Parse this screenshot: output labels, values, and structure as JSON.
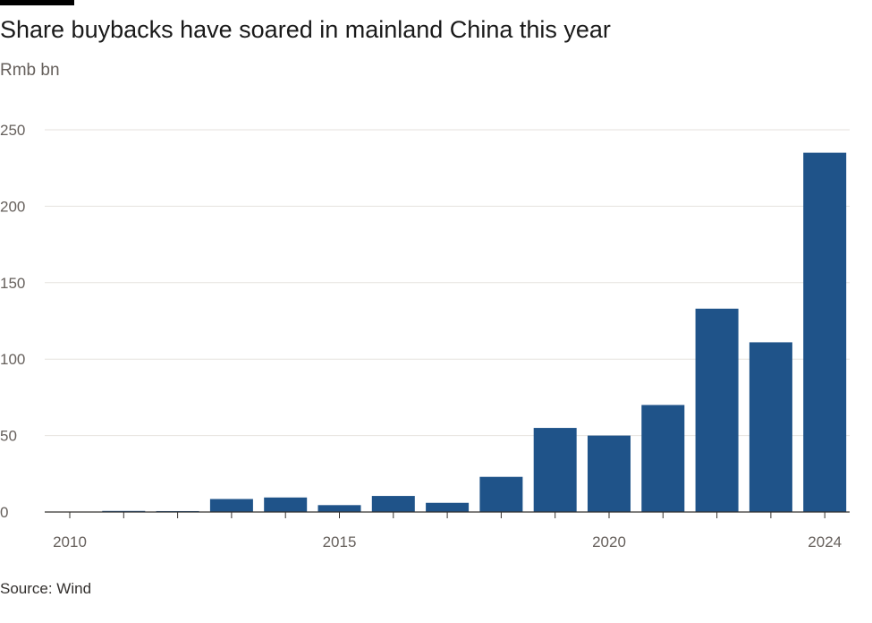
{
  "title": "Share buybacks have soared in mainland China this year",
  "subtitle": "Rmb bn",
  "source": "Source: Wind",
  "colors": {
    "bar": "#1f5389",
    "grid": "#e6e2de",
    "axis": "#33302e",
    "text": "#66605c"
  },
  "chart_data": {
    "type": "bar",
    "x": [
      2010,
      2011,
      2012,
      2013,
      2014,
      2015,
      2016,
      2017,
      2018,
      2019,
      2020,
      2021,
      2022,
      2023,
      2024
    ],
    "values": [
      0,
      0.7,
      0.6,
      8.5,
      9.5,
      4.5,
      10.5,
      6,
      23,
      55,
      50,
      70,
      133,
      111,
      235
    ],
    "title": "Share buybacks have soared in mainland China this year",
    "ylabel": "Rmb bn",
    "xlabel": "",
    "ylim": [
      0,
      250
    ],
    "yticks": [
      0,
      50,
      100,
      150,
      200,
      250
    ],
    "xticks": [
      2010,
      2015,
      2020,
      2024
    ],
    "grid": true
  }
}
